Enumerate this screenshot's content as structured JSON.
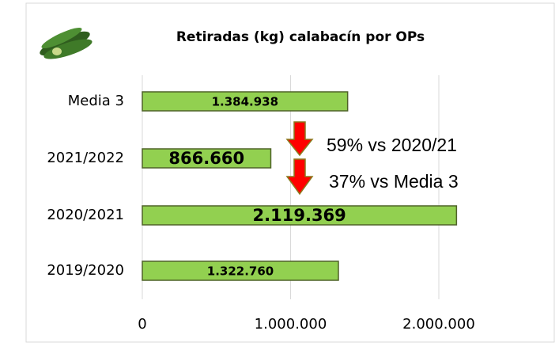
{
  "chart_data": {
    "type": "hbar",
    "title": "Retiradas (kg) calabacín por OPs",
    "categories": [
      "Media 3",
      "2021/2022",
      "2020/2021",
      "2019/2020"
    ],
    "values": [
      1384938,
      866660,
      2119369,
      1322760
    ],
    "value_labels": [
      "1.384.938",
      "866.660",
      "2.119.369",
      "1.322.760"
    ],
    "color": "#92d050",
    "xlim": [
      0,
      2750000
    ],
    "xticks": [
      0,
      {
        "value": 1000000,
        "label": "1.000.000"
      },
      {
        "value": 2000000,
        "label": "2.000.000"
      }
    ],
    "grid": true,
    "annotations": [
      "59% vs 2020/21",
      "37% vs Media 3"
    ]
  }
}
